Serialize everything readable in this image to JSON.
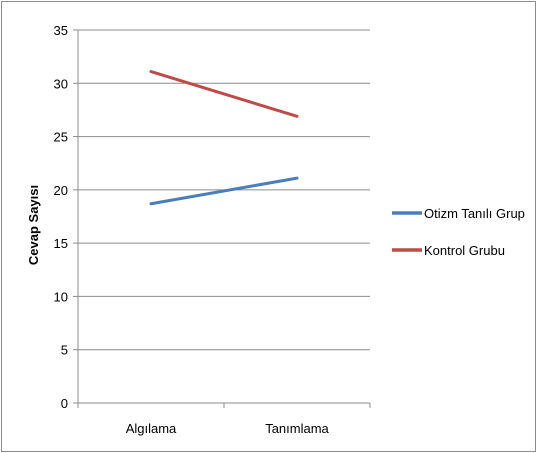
{
  "chart_data": {
    "type": "line",
    "title": "",
    "xlabel": "",
    "ylabel": "Cevap Sayısı",
    "categories": [
      "Algılama",
      "Tanımlama"
    ],
    "ylim": [
      0,
      35
    ],
    "yticks": [
      0,
      5,
      10,
      15,
      20,
      25,
      30,
      35
    ],
    "grid": "horizontal",
    "legend_position": "right",
    "series": [
      {
        "name": "Otizm Tanılı Grup",
        "values": [
          18.7,
          21.1
        ],
        "color": "#4a7ebb"
      },
      {
        "name": "Kontrol Grubu",
        "values": [
          31.1,
          26.9
        ],
        "color": "#be4b48"
      }
    ]
  }
}
